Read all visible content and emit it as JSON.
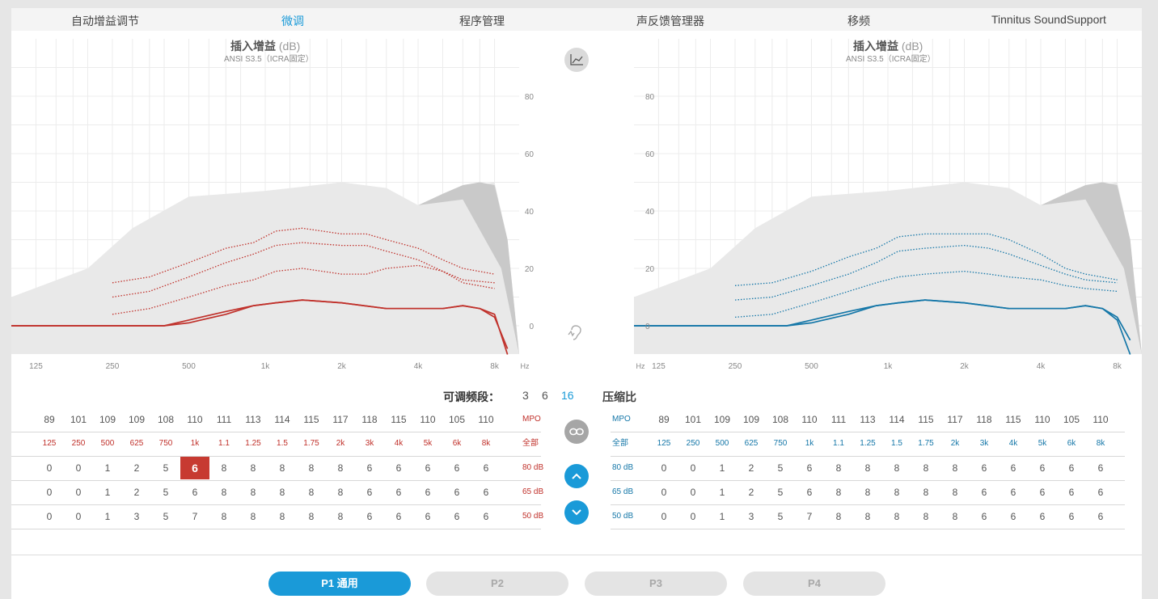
{
  "tabs": [
    {
      "label": "自动增益调节",
      "active": false
    },
    {
      "label": "微调",
      "active": true
    },
    {
      "label": "程序管理",
      "active": false
    },
    {
      "label": "声反馈管理器",
      "active": false
    },
    {
      "label": "移频",
      "active": false
    },
    {
      "label": "Tinnitus SoundSupport",
      "active": false
    }
  ],
  "chart": {
    "title": "插入增益",
    "unit": "(dB)",
    "subtitle": "ANSI S3.5（ICRA固定）",
    "y_ticks": [
      "80",
      "60",
      "40",
      "20",
      "0"
    ],
    "x_ticks": [
      "125",
      "250",
      "500",
      "1k",
      "2k",
      "4k",
      "8k"
    ],
    "x_unit": "Hz"
  },
  "chart_data": [
    {
      "type": "line",
      "side": "left",
      "title": "插入增益 (dB)",
      "ylim": [
        -10,
        95
      ],
      "x_scale": "log",
      "x_range_hz": [
        100,
        10000
      ],
      "series": [
        {
          "color": "#c0312b",
          "style": "dotted",
          "x": [
            250,
            350,
            500,
            700,
            900,
            1100,
            1400,
            2000,
            2500,
            3000,
            4000,
            5000,
            6000,
            8000
          ],
          "y": [
            15,
            17,
            22,
            27,
            29,
            33,
            34,
            32,
            32,
            30,
            27,
            23,
            20,
            18
          ]
        },
        {
          "color": "#c0312b",
          "style": "dotted",
          "x": [
            250,
            350,
            500,
            700,
            900,
            1100,
            1400,
            2000,
            2500,
            3000,
            4000,
            5000,
            6000,
            8000
          ],
          "y": [
            10,
            12,
            17,
            22,
            25,
            28,
            29,
            28,
            28,
            26,
            23,
            19,
            16,
            15
          ]
        },
        {
          "color": "#c0312b",
          "style": "dotted",
          "x": [
            250,
            350,
            500,
            700,
            900,
            1100,
            1400,
            2000,
            2500,
            3000,
            4000,
            5000,
            6000,
            8000
          ],
          "y": [
            4,
            6,
            10,
            14,
            16,
            19,
            20,
            18,
            18,
            20,
            21,
            19,
            15,
            13
          ]
        },
        {
          "color": "#c0312b",
          "style": "solid",
          "x": [
            100,
            250,
            400,
            500,
            700,
            900,
            1100,
            1400,
            2000,
            3000,
            4000,
            5000,
            6000,
            7000,
            8000,
            9000
          ],
          "y": [
            0,
            0,
            0,
            2,
            5,
            7,
            8,
            9,
            8,
            6,
            6,
            6,
            7,
            6,
            4,
            -10
          ]
        },
        {
          "color": "#c0312b",
          "style": "solid",
          "x": [
            100,
            250,
            400,
            500,
            700,
            900,
            1100,
            1400,
            2000,
            3000,
            4000,
            5000,
            6000,
            7000,
            8000,
            9000
          ],
          "y": [
            0,
            0,
            0,
            1,
            4,
            7,
            8,
            9,
            8,
            6,
            6,
            6,
            7,
            6,
            3,
            -8
          ]
        }
      ],
      "reference_area": {
        "x": [
          100,
          200,
          300,
          500,
          1000,
          2000,
          3000,
          4000,
          6000,
          8000,
          9000,
          10000
        ],
        "y": [
          10,
          20,
          34,
          45,
          47,
          50,
          48,
          42,
          48,
          50,
          30,
          -10
        ]
      }
    },
    {
      "type": "line",
      "side": "right",
      "title": "插入增益 (dB)",
      "ylim": [
        -10,
        95
      ],
      "x_scale": "log",
      "x_range_hz": [
        100,
        10000
      ],
      "series": [
        {
          "color": "#1577a8",
          "style": "dotted",
          "x": [
            250,
            350,
            500,
            700,
            900,
            1100,
            1400,
            2000,
            2500,
            3000,
            4000,
            5000,
            6000,
            8000
          ],
          "y": [
            14,
            15,
            19,
            24,
            27,
            31,
            32,
            32,
            32,
            30,
            25,
            20,
            18,
            16
          ]
        },
        {
          "color": "#1577a8",
          "style": "dotted",
          "x": [
            250,
            350,
            500,
            700,
            900,
            1100,
            1400,
            2000,
            2500,
            3000,
            4000,
            5000,
            6000,
            8000
          ],
          "y": [
            9,
            10,
            14,
            18,
            22,
            26,
            27,
            28,
            27,
            25,
            21,
            18,
            16,
            15
          ]
        },
        {
          "color": "#1577a8",
          "style": "dotted",
          "x": [
            250,
            350,
            500,
            700,
            900,
            1100,
            1400,
            2000,
            2500,
            3000,
            4000,
            5000,
            6000,
            8000
          ],
          "y": [
            3,
            4,
            8,
            12,
            15,
            17,
            18,
            19,
            18,
            17,
            16,
            14,
            13,
            12
          ]
        },
        {
          "color": "#1577a8",
          "style": "solid",
          "x": [
            100,
            250,
            400,
            500,
            700,
            900,
            1100,
            1400,
            2000,
            3000,
            4000,
            5000,
            6000,
            7000,
            8000,
            9000
          ],
          "y": [
            0,
            0,
            0,
            1,
            4,
            7,
            8,
            9,
            8,
            6,
            6,
            6,
            7,
            6,
            2,
            -10
          ]
        },
        {
          "color": "#1577a8",
          "style": "solid",
          "x": [
            100,
            250,
            400,
            500,
            700,
            900,
            1100,
            1400,
            2000,
            3000,
            4000,
            5000,
            6000,
            7000,
            8000,
            9000
          ],
          "y": [
            0,
            0,
            0,
            2,
            5,
            7,
            8,
            9,
            8,
            6,
            6,
            6,
            7,
            6,
            3,
            -5
          ]
        }
      ],
      "reference_area": {
        "x": [
          100,
          200,
          300,
          500,
          1000,
          2000,
          3000,
          4000,
          6000,
          8000,
          9000,
          10000
        ],
        "y": [
          10,
          20,
          34,
          45,
          47,
          50,
          48,
          42,
          48,
          50,
          30,
          -10
        ]
      }
    }
  ],
  "channels": {
    "label": "可调频段：",
    "options": [
      "3",
      "6",
      "16"
    ],
    "active": "16",
    "ratio_label": "压缩比"
  },
  "left_table": {
    "labels": [
      "MPO",
      "全部",
      "80 dB",
      "65 dB",
      "50 dB"
    ],
    "rows": [
      [
        "89",
        "101",
        "109",
        "109",
        "108",
        "110",
        "111",
        "113",
        "114",
        "115",
        "117",
        "118",
        "115",
        "110",
        "105",
        "110"
      ],
      [
        "125",
        "250",
        "500",
        "625",
        "750",
        "1k",
        "1.1",
        "1.25",
        "1.5",
        "1.75",
        "2k",
        "3k",
        "4k",
        "5k",
        "6k",
        "8k"
      ],
      [
        "0",
        "0",
        "1",
        "2",
        "5",
        "6",
        "8",
        "8",
        "8",
        "8",
        "8",
        "6",
        "6",
        "6",
        "6",
        "6"
      ],
      [
        "0",
        "0",
        "1",
        "2",
        "5",
        "6",
        "8",
        "8",
        "8",
        "8",
        "8",
        "6",
        "6",
        "6",
        "6",
        "6"
      ],
      [
        "0",
        "0",
        "1",
        "3",
        "5",
        "7",
        "8",
        "8",
        "8",
        "8",
        "8",
        "6",
        "6",
        "6",
        "6",
        "6"
      ]
    ],
    "selected": {
      "row": 2,
      "col": 5
    }
  },
  "right_table": {
    "labels": [
      "MPO",
      "全部",
      "80 dB",
      "65 dB",
      "50 dB"
    ],
    "rows": [
      [
        "89",
        "101",
        "109",
        "109",
        "108",
        "110",
        "111",
        "113",
        "114",
        "115",
        "117",
        "118",
        "115",
        "110",
        "105",
        "110"
      ],
      [
        "125",
        "250",
        "500",
        "625",
        "750",
        "1k",
        "1.1",
        "1.25",
        "1.5",
        "1.75",
        "2k",
        "3k",
        "4k",
        "5k",
        "6k",
        "8k"
      ],
      [
        "0",
        "0",
        "1",
        "2",
        "5",
        "6",
        "8",
        "8",
        "8",
        "8",
        "8",
        "6",
        "6",
        "6",
        "6",
        "6"
      ],
      [
        "0",
        "0",
        "1",
        "2",
        "5",
        "6",
        "8",
        "8",
        "8",
        "8",
        "8",
        "6",
        "6",
        "6",
        "6",
        "6"
      ],
      [
        "0",
        "0",
        "1",
        "3",
        "5",
        "7",
        "8",
        "8",
        "8",
        "8",
        "8",
        "6",
        "6",
        "6",
        "6",
        "6"
      ]
    ]
  },
  "programs": [
    {
      "label": "P1 通用",
      "active": true
    },
    {
      "label": "P2",
      "active": false
    },
    {
      "label": "P3",
      "active": false
    },
    {
      "label": "P4",
      "active": false
    }
  ],
  "icons": {
    "graph_toggle": "line-graph-icon",
    "link": "link-icon",
    "up": "chevron-up-icon",
    "down": "chevron-down-icon",
    "feedback": "ear-feedback-icon"
  },
  "colors": {
    "accent": "#1a9ad8",
    "left": "#c0312b",
    "right": "#1577a8",
    "selected": "#c73a31"
  }
}
